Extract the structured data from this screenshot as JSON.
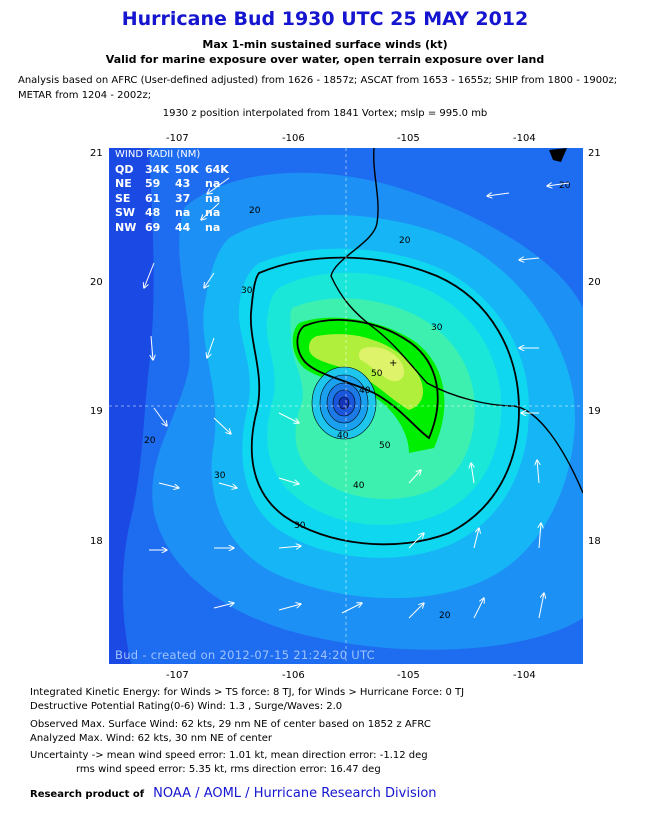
{
  "header": {
    "title": "Hurricane Bud 1930 UTC 25 MAY 2012",
    "subtitle1": "Max 1-min sustained surface winds (kt)",
    "subtitle2": "Valid for marine exposure over water, open terrain exposure over land",
    "analysis_line1": "Analysis based on AFRC (User-defined adjusted) from 1626 - 1857z; ASCAT from 1653 - 1655z; SHIP from 1800 - 1900z;",
    "analysis_line2": "METAR from 1204 - 2002z;",
    "position_line": "1930 z position interpolated from 1841 Vortex; mslp = 995.0 mb"
  },
  "map": {
    "lon_ticks": [
      "-107",
      "-106",
      "-105",
      "-104"
    ],
    "lat_ticks": [
      "21",
      "20",
      "19",
      "18"
    ],
    "contour_labels": [
      "20",
      "20",
      "20",
      "20",
      "30",
      "30",
      "30",
      "30",
      "40",
      "40",
      "40",
      "50",
      "50",
      "20"
    ],
    "wind_radii": {
      "title": "WIND RADII (NM)",
      "header": [
        "QD",
        "34K",
        "50K",
        "64K"
      ],
      "rows": [
        [
          "NE",
          "59",
          "43",
          "na"
        ],
        [
          "SE",
          "61",
          "37",
          "na"
        ],
        [
          "SW",
          "48",
          "na",
          "na"
        ],
        [
          "NW",
          "69",
          "44",
          "na"
        ]
      ]
    },
    "stamp": "Bud - created on 2012-07-15 21:24:20 UTC",
    "colors": {
      "level0": "#1a49e4",
      "level1": "#1e6cf0",
      "level2": "#1c90f4",
      "level3": "#16b5f6",
      "level4": "#10d7f0",
      "level5": "#1ae7d8",
      "level6": "#3ef0b0",
      "level7": "#00ee00",
      "level8": "#b0f03c",
      "level9": "#dff36a",
      "land_line": "#000000"
    }
  },
  "info": {
    "ike": "Integrated Kinetic Energy: for Winds > TS force: 8 TJ, for Winds > Hurricane Force: 0 TJ",
    "dpr": "Destructive Potential Rating(0-6)   Wind: 1.3 , Surge/Waves: 2.0",
    "observed": "Observed Max. Surface Wind: 62 kts, 29 nm NE of center based on 1852 z AFRC",
    "analyzed": "Analyzed Max. Wind: 62 kts, 30 nm  NE of center",
    "uncertainty1": "Uncertainty -> mean wind speed error: 1.01 kt, mean direction error:  -1.12 deg",
    "uncertainty2": "rms wind speed error: 5.35 kt, rms direction error: 16.47 deg"
  },
  "footer": {
    "label": "Research product of",
    "org": "NOAA  /  AOML  /  Hurricane Research Division"
  }
}
